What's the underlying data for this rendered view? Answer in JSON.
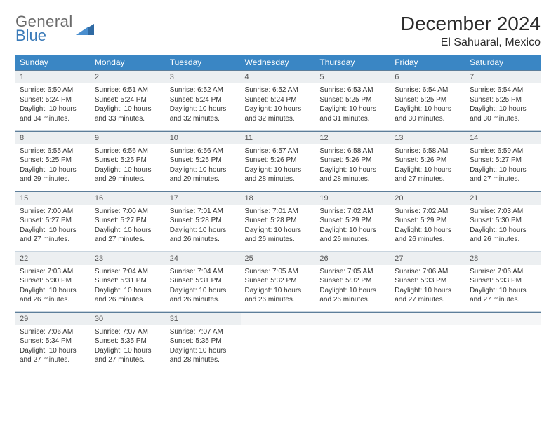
{
  "logo": {
    "top": "General",
    "bottom": "Blue"
  },
  "title": "December 2024",
  "location": "El Sahuaral, Mexico",
  "colors": {
    "header_bg": "#3a86c4",
    "header_text": "#ffffff",
    "daynum_bg": "#eceff1",
    "daynum_border_top": "#5d7e9a",
    "cell_border": "#c8d4de",
    "logo_gray": "#6b6b6b",
    "logo_blue": "#3a7ab8"
  },
  "weekdays": [
    "Sunday",
    "Monday",
    "Tuesday",
    "Wednesday",
    "Thursday",
    "Friday",
    "Saturday"
  ],
  "days": [
    {
      "n": "1",
      "sr": "6:50 AM",
      "ss": "5:24 PM",
      "dl": "10 hours and 34 minutes."
    },
    {
      "n": "2",
      "sr": "6:51 AM",
      "ss": "5:24 PM",
      "dl": "10 hours and 33 minutes."
    },
    {
      "n": "3",
      "sr": "6:52 AM",
      "ss": "5:24 PM",
      "dl": "10 hours and 32 minutes."
    },
    {
      "n": "4",
      "sr": "6:52 AM",
      "ss": "5:24 PM",
      "dl": "10 hours and 32 minutes."
    },
    {
      "n": "5",
      "sr": "6:53 AM",
      "ss": "5:25 PM",
      "dl": "10 hours and 31 minutes."
    },
    {
      "n": "6",
      "sr": "6:54 AM",
      "ss": "5:25 PM",
      "dl": "10 hours and 30 minutes."
    },
    {
      "n": "7",
      "sr": "6:54 AM",
      "ss": "5:25 PM",
      "dl": "10 hours and 30 minutes."
    },
    {
      "n": "8",
      "sr": "6:55 AM",
      "ss": "5:25 PM",
      "dl": "10 hours and 29 minutes."
    },
    {
      "n": "9",
      "sr": "6:56 AM",
      "ss": "5:25 PM",
      "dl": "10 hours and 29 minutes."
    },
    {
      "n": "10",
      "sr": "6:56 AM",
      "ss": "5:25 PM",
      "dl": "10 hours and 29 minutes."
    },
    {
      "n": "11",
      "sr": "6:57 AM",
      "ss": "5:26 PM",
      "dl": "10 hours and 28 minutes."
    },
    {
      "n": "12",
      "sr": "6:58 AM",
      "ss": "5:26 PM",
      "dl": "10 hours and 28 minutes."
    },
    {
      "n": "13",
      "sr": "6:58 AM",
      "ss": "5:26 PM",
      "dl": "10 hours and 27 minutes."
    },
    {
      "n": "14",
      "sr": "6:59 AM",
      "ss": "5:27 PM",
      "dl": "10 hours and 27 minutes."
    },
    {
      "n": "15",
      "sr": "7:00 AM",
      "ss": "5:27 PM",
      "dl": "10 hours and 27 minutes."
    },
    {
      "n": "16",
      "sr": "7:00 AM",
      "ss": "5:27 PM",
      "dl": "10 hours and 27 minutes."
    },
    {
      "n": "17",
      "sr": "7:01 AM",
      "ss": "5:28 PM",
      "dl": "10 hours and 26 minutes."
    },
    {
      "n": "18",
      "sr": "7:01 AM",
      "ss": "5:28 PM",
      "dl": "10 hours and 26 minutes."
    },
    {
      "n": "19",
      "sr": "7:02 AM",
      "ss": "5:29 PM",
      "dl": "10 hours and 26 minutes."
    },
    {
      "n": "20",
      "sr": "7:02 AM",
      "ss": "5:29 PM",
      "dl": "10 hours and 26 minutes."
    },
    {
      "n": "21",
      "sr": "7:03 AM",
      "ss": "5:30 PM",
      "dl": "10 hours and 26 minutes."
    },
    {
      "n": "22",
      "sr": "7:03 AM",
      "ss": "5:30 PM",
      "dl": "10 hours and 26 minutes."
    },
    {
      "n": "23",
      "sr": "7:04 AM",
      "ss": "5:31 PM",
      "dl": "10 hours and 26 minutes."
    },
    {
      "n": "24",
      "sr": "7:04 AM",
      "ss": "5:31 PM",
      "dl": "10 hours and 26 minutes."
    },
    {
      "n": "25",
      "sr": "7:05 AM",
      "ss": "5:32 PM",
      "dl": "10 hours and 26 minutes."
    },
    {
      "n": "26",
      "sr": "7:05 AM",
      "ss": "5:32 PM",
      "dl": "10 hours and 26 minutes."
    },
    {
      "n": "27",
      "sr": "7:06 AM",
      "ss": "5:33 PM",
      "dl": "10 hours and 27 minutes."
    },
    {
      "n": "28",
      "sr": "7:06 AM",
      "ss": "5:33 PM",
      "dl": "10 hours and 27 minutes."
    },
    {
      "n": "29",
      "sr": "7:06 AM",
      "ss": "5:34 PM",
      "dl": "10 hours and 27 minutes."
    },
    {
      "n": "30",
      "sr": "7:07 AM",
      "ss": "5:35 PM",
      "dl": "10 hours and 27 minutes."
    },
    {
      "n": "31",
      "sr": "7:07 AM",
      "ss": "5:35 PM",
      "dl": "10 hours and 28 minutes."
    }
  ],
  "labels": {
    "sunrise": "Sunrise:",
    "sunset": "Sunset:",
    "daylight": "Daylight:"
  }
}
